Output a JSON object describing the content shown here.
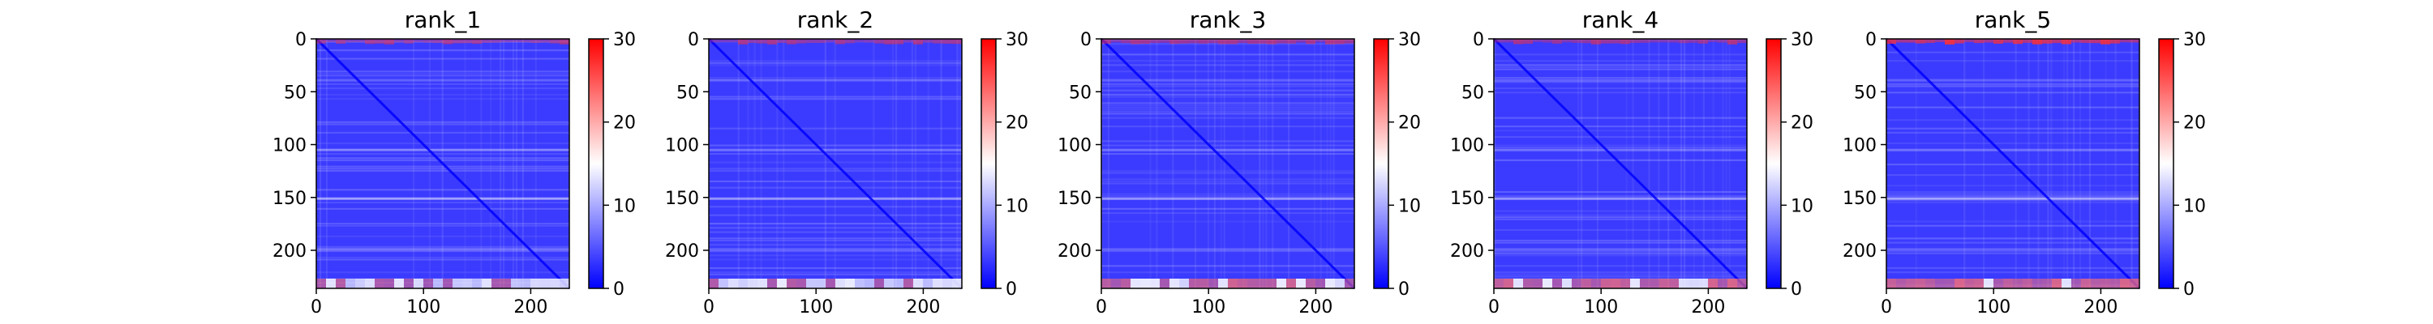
{
  "chart_data": {
    "type": "heatmap",
    "panels": [
      {
        "title": "rank_1"
      },
      {
        "title": "rank_2"
      },
      {
        "title": "rank_3"
      },
      {
        "title": "rank_4"
      },
      {
        "title": "rank_5"
      }
    ],
    "matrix_size": 236,
    "x_ticks": [
      0,
      100,
      200
    ],
    "y_ticks": [
      0,
      50,
      100,
      150,
      200
    ],
    "colorbar": {
      "range": [
        0,
        30
      ],
      "ticks": [
        0,
        10,
        20,
        30
      ],
      "colors": [
        "#0000ff",
        "#ffffff",
        "#ff0000"
      ]
    },
    "grid": false,
    "legend": "none"
  }
}
